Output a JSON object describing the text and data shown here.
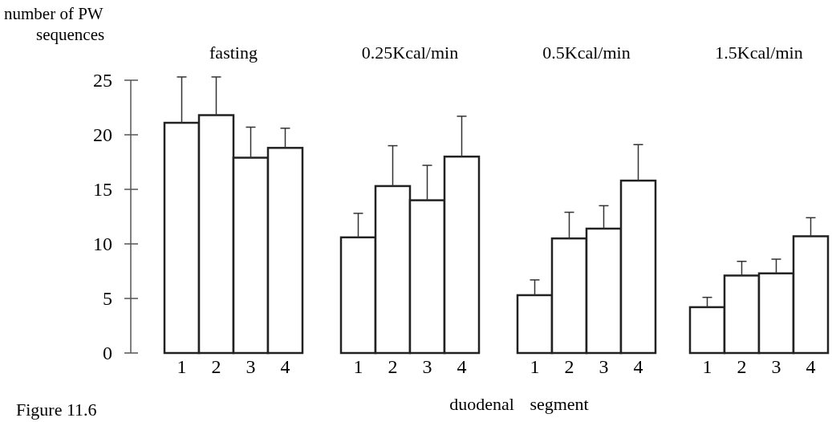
{
  "chart_data": [
    {
      "type": "bar",
      "title": "fasting",
      "ylabel": "number of PW sequences",
      "categories": [
        "1",
        "2",
        "3",
        "4"
      ],
      "values": [
        21.1,
        21.8,
        17.9,
        18.8
      ],
      "errors": [
        [
          21.1,
          25.3
        ],
        [
          21.8,
          25.3
        ],
        [
          17.9,
          20.7
        ],
        [
          18.8,
          20.6
        ]
      ],
      "color": "#ffffff",
      "ylim": [
        0,
        25
      ],
      "yticks": [
        0,
        5,
        10,
        15,
        20,
        25
      ],
      "grid": false,
      "annotations": [
        "Figure 11.6"
      ]
    },
    {
      "type": "bar",
      "title": "0.25Kcal/min",
      "xlabel": "duodenal segment",
      "categories": [
        "1",
        "2",
        "3",
        "4"
      ],
      "values": [
        10.6,
        15.3,
        14.0,
        18.0
      ],
      "errors": [
        [
          10.6,
          12.8
        ],
        [
          15.3,
          19.0
        ],
        [
          14.0,
          17.2
        ],
        [
          18.0,
          21.7
        ]
      ],
      "color": "#ffffff",
      "ylim": [
        0,
        25
      ],
      "tick_labels": "x",
      "grid": false
    },
    {
      "type": "bar",
      "title": "0.5Kcal/min",
      "categories": [
        "1",
        "2",
        "3",
        "4"
      ],
      "values": [
        5.3,
        10.5,
        11.4,
        15.8
      ],
      "errors": [
        [
          5.3,
          6.7
        ],
        [
          10.5,
          12.9
        ],
        [
          11.4,
          13.5
        ],
        [
          15.8,
          19.1
        ]
      ],
      "color": "#ffffff",
      "ylim": [
        0,
        25
      ],
      "tick_labels": "x",
      "grid": false
    },
    {
      "type": "bar",
      "title": "1.5Kcal/min",
      "categories": [
        "1",
        "2",
        "3",
        "4"
      ],
      "values": [
        4.2,
        7.1,
        7.3,
        10.7
      ],
      "errors": [
        [
          4.2,
          5.1
        ],
        [
          7.1,
          8.4
        ],
        [
          7.3,
          8.6
        ],
        [
          10.7,
          12.4
        ]
      ],
      "color": "#ffffff",
      "ylim": [
        0,
        25
      ],
      "tick_labels": "x",
      "grid": false
    }
  ]
}
